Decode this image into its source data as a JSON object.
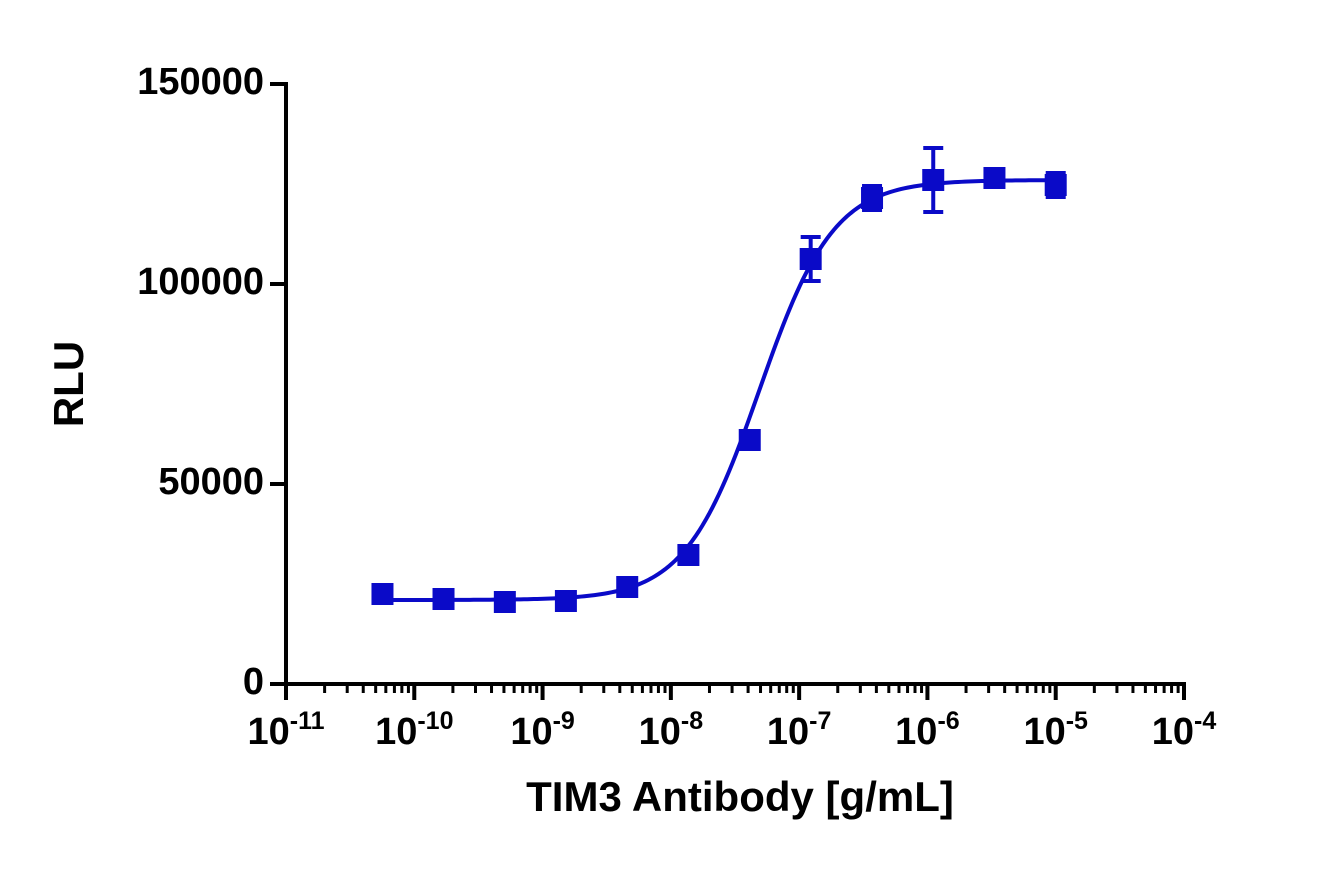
{
  "chart_data": {
    "type": "scatter",
    "x_label": "TIM3 Antibody [g/mL]",
    "y_label": "RLU",
    "x_scale": "log",
    "xlim": [
      1e-11,
      0.0001
    ],
    "xticks": [
      {
        "value": 1e-11,
        "label": "10",
        "exponent": "-11"
      },
      {
        "value": 1e-10,
        "label": "10",
        "exponent": "-10"
      },
      {
        "value": 1e-09,
        "label": "10",
        "exponent": "-9"
      },
      {
        "value": 1e-08,
        "label": "10",
        "exponent": "-8"
      },
      {
        "value": 1e-07,
        "label": "10",
        "exponent": "-7"
      },
      {
        "value": 1e-06,
        "label": "10",
        "exponent": "-6"
      },
      {
        "value": 1e-05,
        "label": "10",
        "exponent": "-5"
      },
      {
        "value": 0.0001,
        "label": "10",
        "exponent": "-4"
      }
    ],
    "ylim": [
      0,
      150000
    ],
    "yticks": [
      0,
      50000,
      100000,
      150000
    ],
    "series": [
      {
        "color": "#0a0ac8",
        "x": [
          5.65e-11,
          1.69e-10,
          5.08e-10,
          1.52e-09,
          4.57e-09,
          1.37e-08,
          4.12e-08,
          1.23e-07,
          3.7e-07,
          1.11e-06,
          3.33e-06,
          1e-05
        ],
        "values": [
          22500,
          21250,
          20500,
          20750,
          24250,
          32250,
          61000,
          106250,
          121500,
          126000,
          126500,
          124750
        ],
        "errors": [
          1000,
          800,
          800,
          800,
          1000,
          1200,
          1500,
          5500,
          3000,
          8000,
          1000,
          3000
        ]
      }
    ],
    "fit": {
      "bottom": 21000,
      "top": 126000,
      "ec50": 4.9e-08,
      "hill": 1.5
    }
  }
}
